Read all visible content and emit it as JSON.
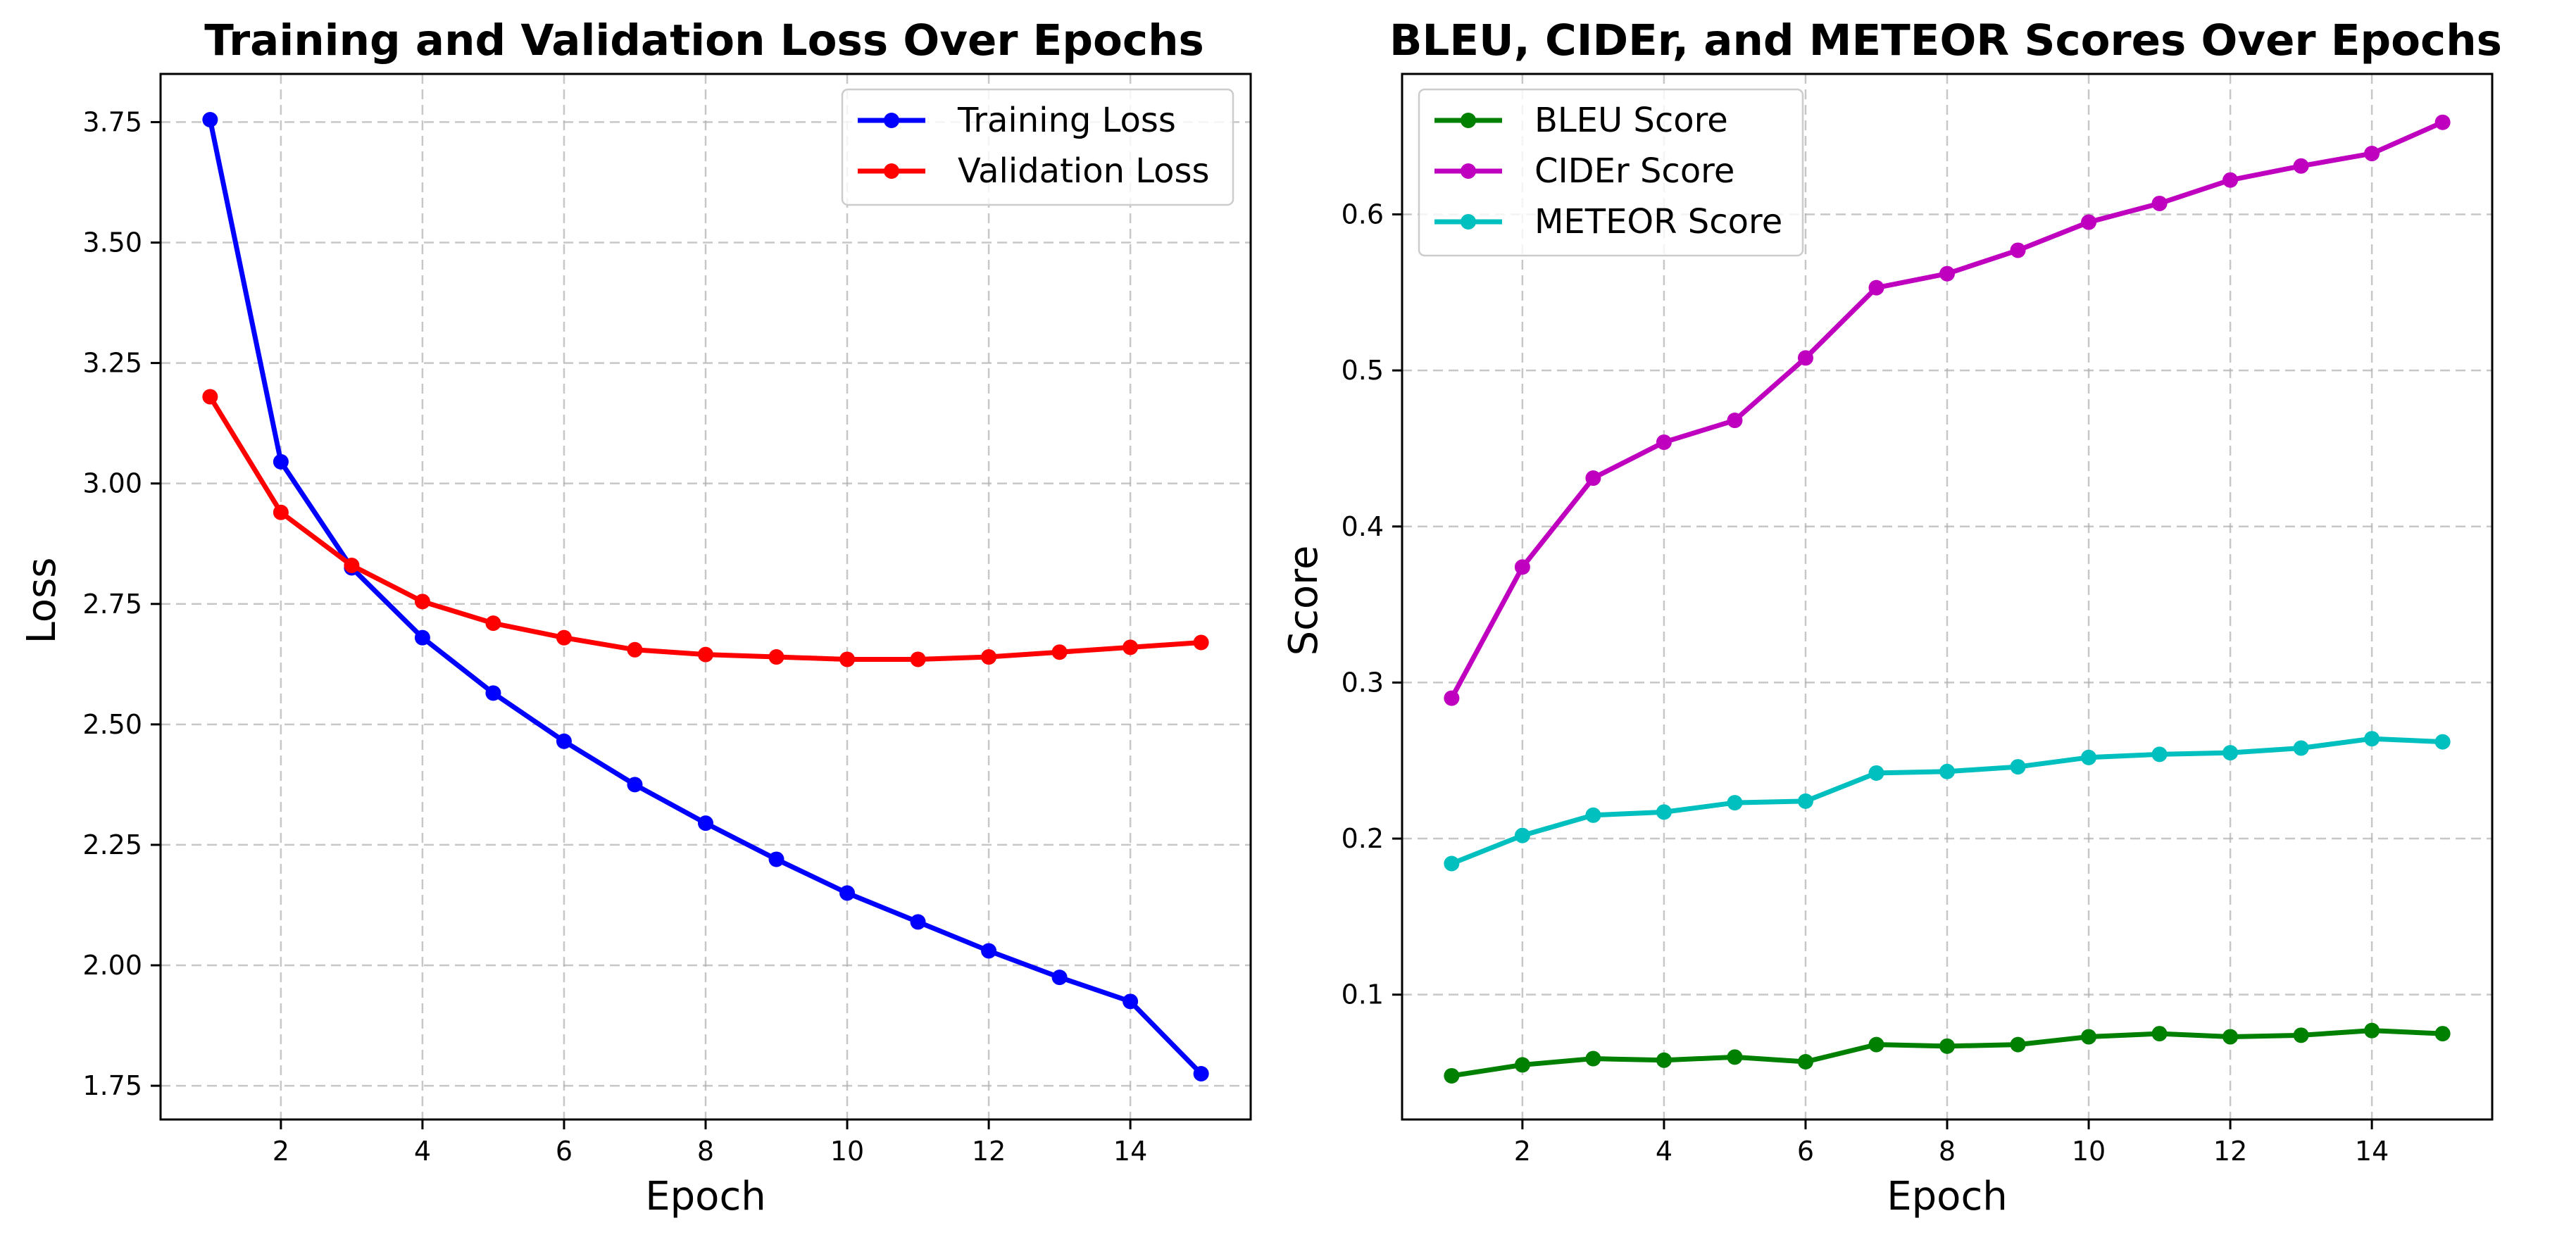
{
  "chart_data": [
    {
      "type": "line",
      "title": "Training and Validation Loss Over Epochs",
      "xlabel": "Epoch",
      "ylabel": "Loss",
      "x": [
        1,
        2,
        3,
        4,
        5,
        6,
        7,
        8,
        9,
        10,
        11,
        12,
        13,
        14,
        15
      ],
      "xlim": [
        0.3,
        15.7
      ],
      "ylim": [
        1.68,
        3.85
      ],
      "xticks": [
        2,
        4,
        6,
        8,
        10,
        12,
        14
      ],
      "yticks": [
        1.75,
        2.0,
        2.25,
        2.5,
        2.75,
        3.0,
        3.25,
        3.5,
        3.75
      ],
      "ytick_labels": [
        "1.75",
        "2.00",
        "2.25",
        "2.50",
        "2.75",
        "3.00",
        "3.25",
        "3.50",
        "3.75"
      ],
      "grid": true,
      "legend_position": "top-right",
      "series": [
        {
          "name": "Training Loss",
          "color": "#0000ff",
          "values": [
            3.755,
            3.045,
            2.825,
            2.68,
            2.565,
            2.465,
            2.375,
            2.295,
            2.22,
            2.15,
            2.09,
            2.03,
            1.975,
            1.925,
            1.775
          ]
        },
        {
          "name": "Validation Loss",
          "color": "#ff0000",
          "values": [
            3.18,
            2.94,
            2.83,
            2.755,
            2.71,
            2.68,
            2.655,
            2.645,
            2.64,
            2.635,
            2.635,
            2.64,
            2.65,
            2.66,
            2.67
          ]
        }
      ]
    },
    {
      "type": "line",
      "title": "BLEU, CIDEr, and METEOR Scores Over Epochs",
      "xlabel": "Epoch",
      "ylabel": "Score",
      "x": [
        1,
        2,
        3,
        4,
        5,
        6,
        7,
        8,
        9,
        10,
        11,
        12,
        13,
        14,
        15
      ],
      "xlim": [
        0.3,
        15.7
      ],
      "ylim": [
        0.02,
        0.69
      ],
      "xticks": [
        2,
        4,
        6,
        8,
        10,
        12,
        14
      ],
      "yticks": [
        0.1,
        0.2,
        0.3,
        0.4,
        0.5,
        0.6
      ],
      "ytick_labels": [
        "0.1",
        "0.2",
        "0.3",
        "0.4",
        "0.5",
        "0.6"
      ],
      "grid": true,
      "legend_position": "top-left",
      "series": [
        {
          "name": "BLEU Score",
          "color": "#008000",
          "values": [
            0.048,
            0.055,
            0.059,
            0.058,
            0.06,
            0.057,
            0.068,
            0.067,
            0.068,
            0.073,
            0.075,
            0.073,
            0.074,
            0.077,
            0.075
          ]
        },
        {
          "name": "CIDEr Score",
          "color": "#bf00bf",
          "values": [
            0.29,
            0.374,
            0.431,
            0.454,
            0.468,
            0.508,
            0.553,
            0.562,
            0.577,
            0.595,
            0.607,
            0.622,
            0.631,
            0.639,
            0.659
          ]
        },
        {
          "name": "METEOR Score",
          "color": "#00bfbf",
          "values": [
            0.184,
            0.202,
            0.215,
            0.217,
            0.223,
            0.224,
            0.242,
            0.243,
            0.246,
            0.252,
            0.254,
            0.255,
            0.258,
            0.264,
            0.262
          ]
        }
      ]
    }
  ]
}
